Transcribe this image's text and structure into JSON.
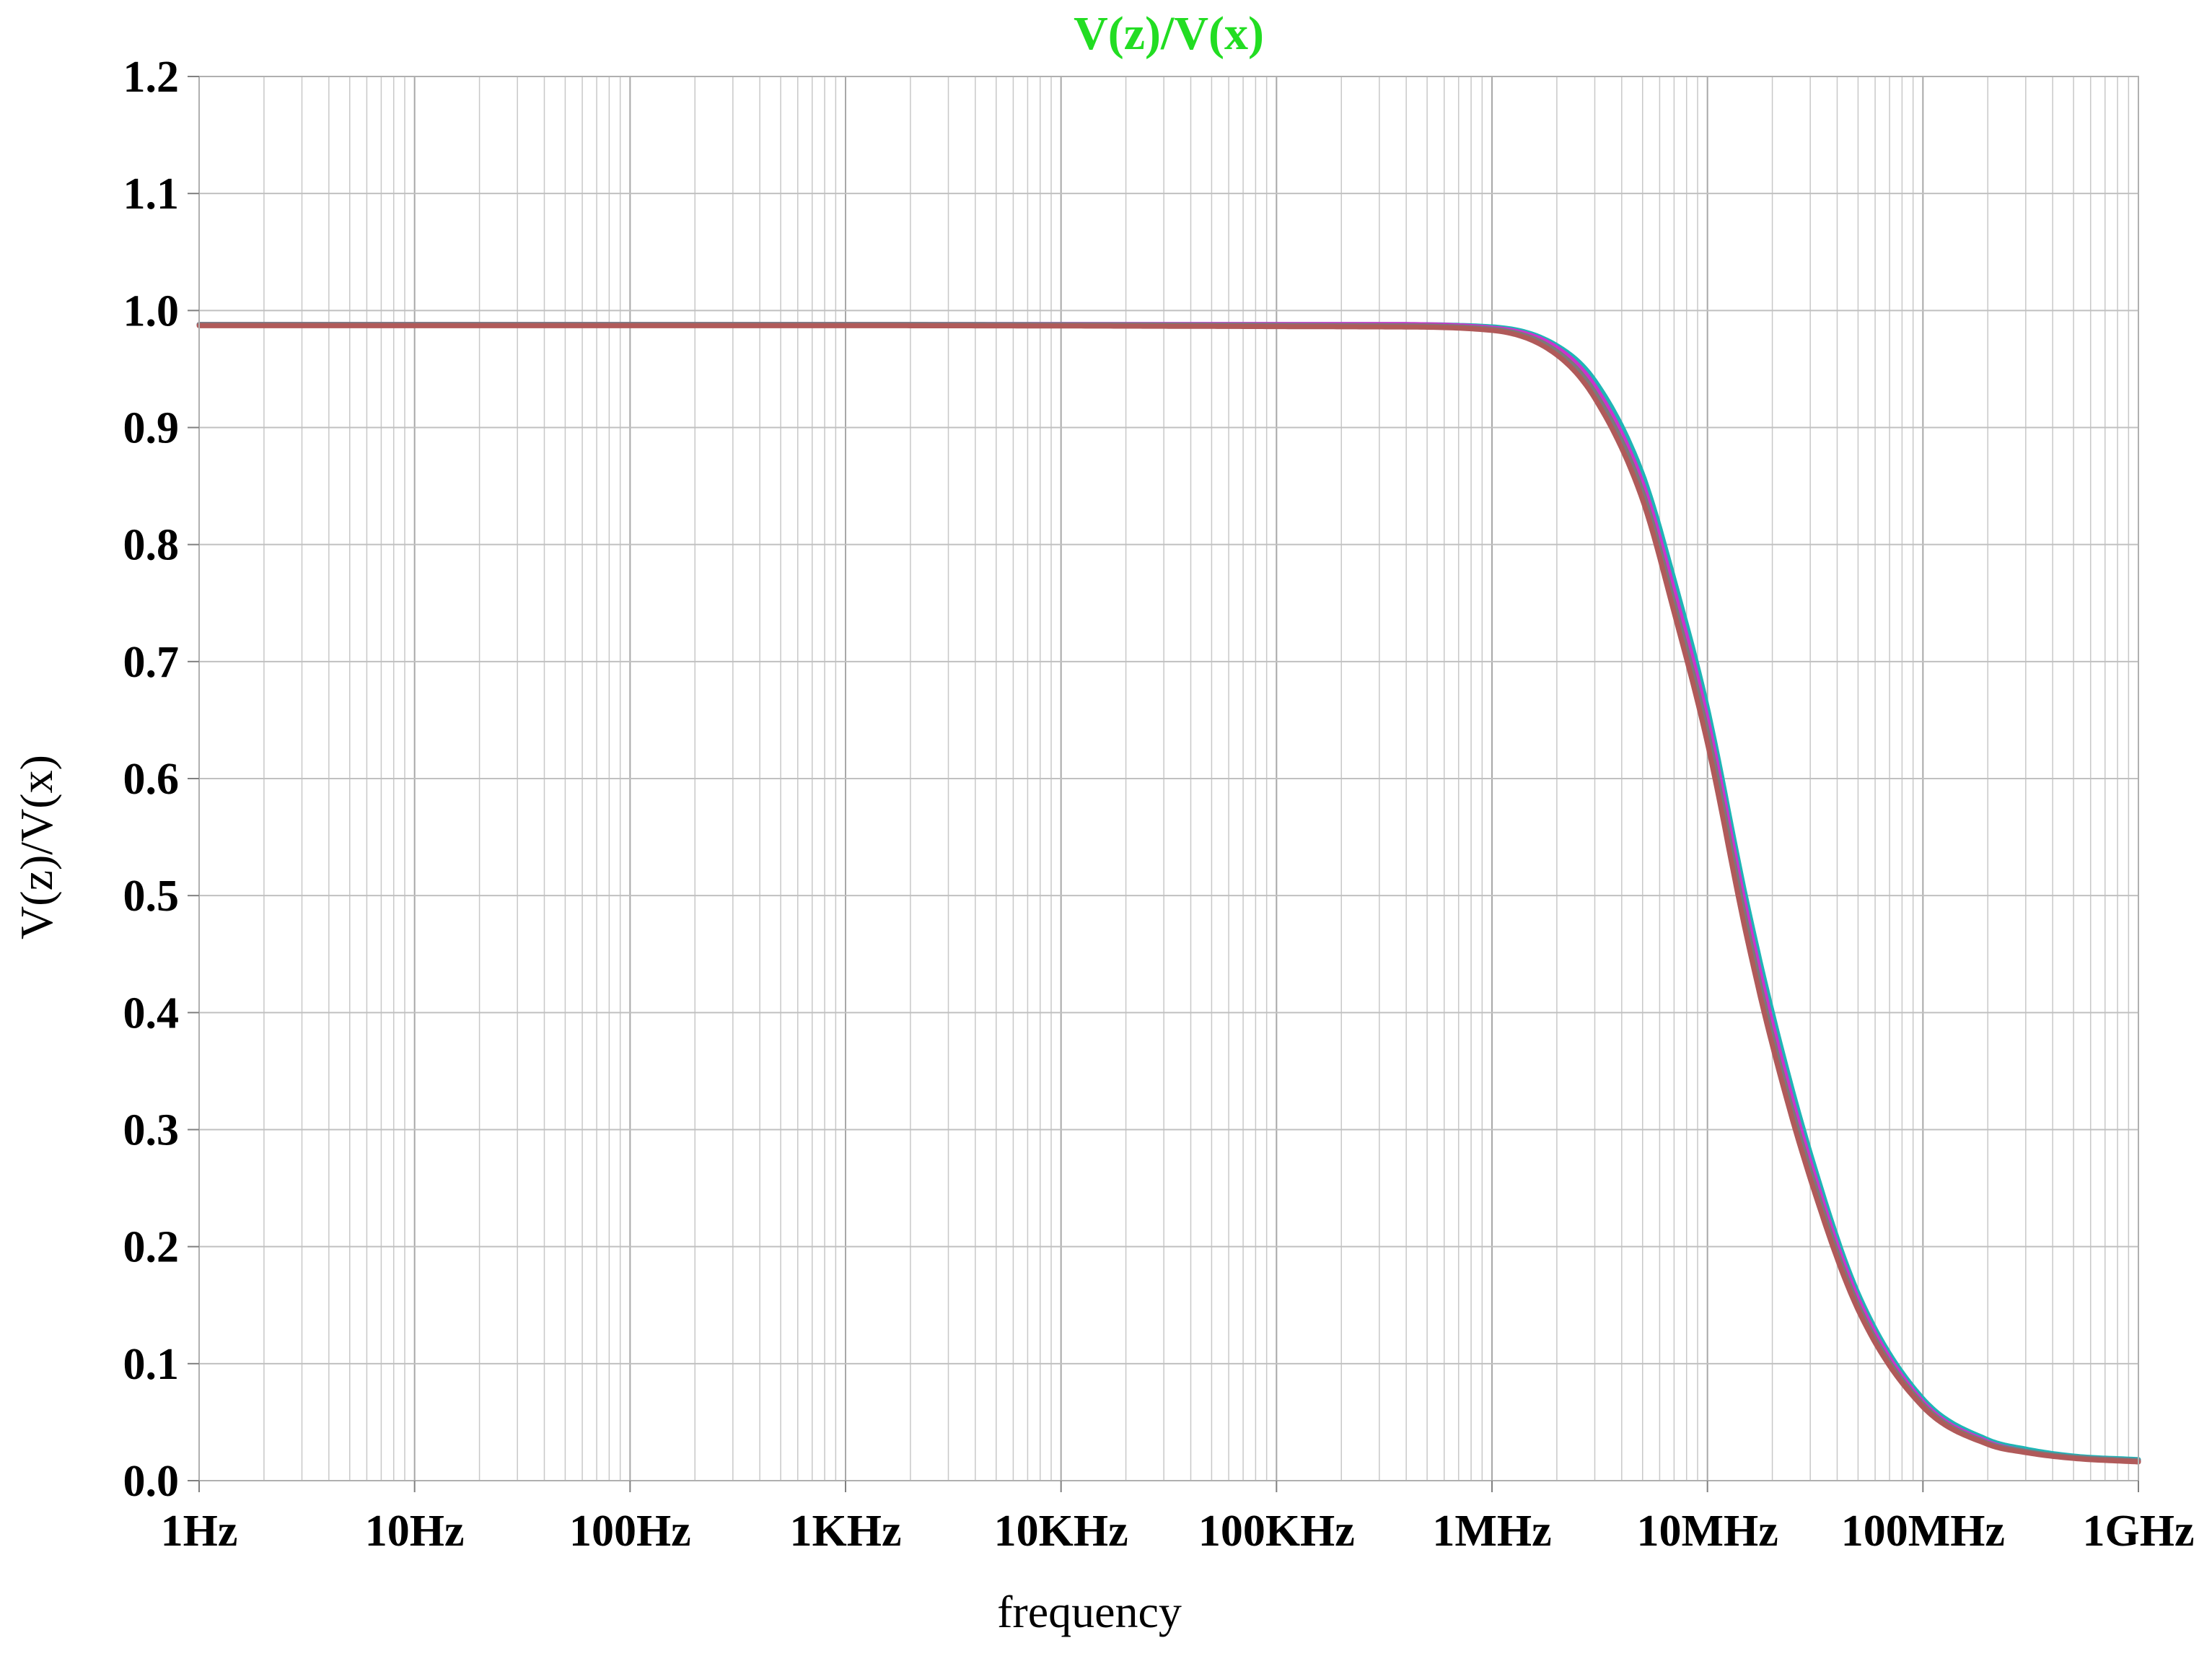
{
  "chart_data": {
    "type": "line",
    "title": "V(z)/V(x)",
    "xlabel": "frequency",
    "ylabel": "V(z)/V(x)",
    "x_scale": "log",
    "xlim": [
      1,
      1000000000
    ],
    "ylim": [
      0.0,
      1.2
    ],
    "x_tick_values": [
      1,
      10,
      100,
      1000,
      10000,
      100000,
      1000000,
      10000000,
      100000000,
      1000000000
    ],
    "x_tick_labels": [
      "1Hz",
      "10Hz",
      "100Hz",
      "1KHz",
      "10KHz",
      "100KHz",
      "1MHz",
      "10MHz",
      "100MHz",
      "1GHz"
    ],
    "y_tick_values": [
      0.0,
      0.1,
      0.2,
      0.3,
      0.4,
      0.5,
      0.6,
      0.7,
      0.8,
      0.9,
      1.0,
      1.1,
      1.2
    ],
    "y_tick_labels": [
      "0.0",
      "0.1",
      "0.2",
      "0.3",
      "0.4",
      "0.5",
      "0.6",
      "0.7",
      "0.8",
      "0.9",
      "1.0",
      "1.1",
      "1.2"
    ],
    "grid": true,
    "series": [
      {
        "color": "#1fb5b5",
        "x": [
          1,
          1000,
          300000,
          1000000,
          2000000,
          3000000,
          5000000,
          7000000,
          10000000,
          15000000,
          20000000,
          30000000,
          50000000,
          100000000,
          200000000,
          300000000,
          500000000,
          1000000000
        ],
        "values": [
          0.988,
          0.988,
          0.988,
          0.986,
          0.97,
          0.94,
          0.86,
          0.77,
          0.66,
          0.5,
          0.4,
          0.28,
          0.16,
          0.07,
          0.035,
          0.027,
          0.021,
          0.018
        ]
      },
      {
        "color": "#cc33cc",
        "x": [
          1,
          1000,
          300000,
          1000000,
          2000000,
          3000000,
          5000000,
          7000000,
          10000000,
          15000000,
          20000000,
          30000000,
          50000000,
          100000000,
          200000000,
          300000000,
          500000000,
          1000000000
        ],
        "values": [
          0.988,
          0.988,
          0.988,
          0.985,
          0.968,
          0.935,
          0.852,
          0.76,
          0.65,
          0.49,
          0.39,
          0.272,
          0.155,
          0.067,
          0.033,
          0.025,
          0.02,
          0.017
        ]
      },
      {
        "color": "#7a7a7a",
        "x": [
          1,
          1000,
          300000,
          1000000,
          2000000,
          3000000,
          5000000,
          7000000,
          10000000,
          15000000,
          20000000,
          30000000,
          50000000,
          100000000,
          200000000,
          300000000,
          500000000,
          1000000000
        ],
        "values": [
          0.988,
          0.988,
          0.987,
          0.984,
          0.965,
          0.93,
          0.845,
          0.75,
          0.64,
          0.48,
          0.38,
          0.265,
          0.15,
          0.065,
          0.032,
          0.025,
          0.02,
          0.017
        ]
      },
      {
        "color": "#b05a5a",
        "x": [
          1,
          1000,
          300000,
          1000000,
          2000000,
          3000000,
          5000000,
          7000000,
          10000000,
          15000000,
          20000000,
          30000000,
          50000000,
          100000000,
          200000000,
          300000000,
          500000000,
          1000000000
        ],
        "values": [
          0.987,
          0.987,
          0.986,
          0.983,
          0.962,
          0.925,
          0.838,
          0.742,
          0.63,
          0.47,
          0.372,
          0.258,
          0.146,
          0.063,
          0.031,
          0.024,
          0.019,
          0.016
        ]
      }
    ]
  }
}
